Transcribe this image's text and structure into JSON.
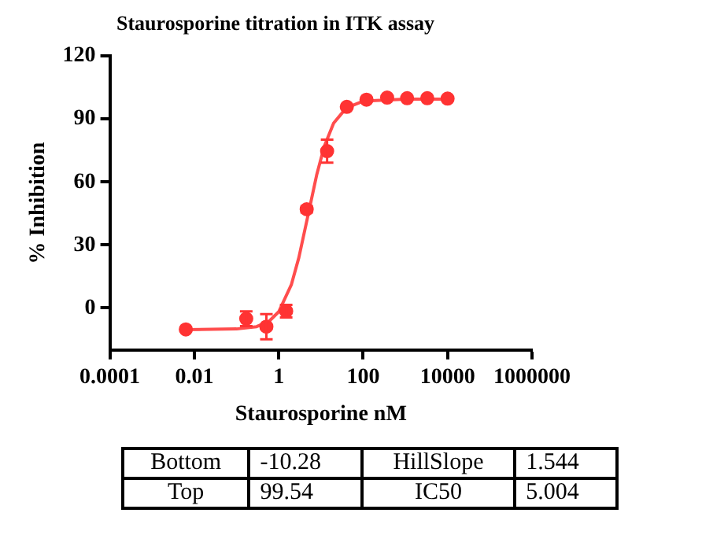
{
  "chart_data": {
    "type": "scatter",
    "title": "Staurosporine titration in ITK assay",
    "xlabel": "Staurosporine nM",
    "ylabel": "% Inhibition",
    "log": "x",
    "xlim": [
      0.0001,
      1000000
    ],
    "xticks": [
      0.0001,
      0.01,
      1,
      100,
      10000,
      1000000
    ],
    "ylim": [
      -20,
      120
    ],
    "yticks": [
      0,
      30,
      60,
      90,
      120
    ],
    "grid": false,
    "legend": false,
    "series": [
      {
        "color": "#ff3333",
        "marker": "circle",
        "x": [
          0.0063,
          0.17,
          0.51,
          1.5,
          4.6,
          14,
          41,
          120,
          370,
          1100,
          3300,
          10000
        ],
        "values": [
          -10.2,
          -5.1,
          -8.9,
          -1.5,
          47,
          74.7,
          95.8,
          99.2,
          100.2,
          99.9,
          99.9,
          99.7
        ],
        "errors": [
          null,
          3.5,
          6,
          3,
          1.5,
          5.5,
          null,
          null,
          null,
          null,
          null,
          null
        ]
      },
      {
        "type": "line",
        "color": "#ff4d4d",
        "marker": "none",
        "x": [
          0.0063,
          0.1,
          0.3,
          0.6,
          1,
          2,
          3,
          5,
          8,
          12,
          20,
          40,
          100,
          1000,
          10000
        ],
        "values": [
          -10.3,
          -10,
          -8.9,
          -6.2,
          -1.8,
          11.2,
          24,
          44.6,
          63.7,
          77,
          88,
          95.3,
          98.5,
          99.5,
          99.5
        ]
      }
    ],
    "annotations": [
      "Bottom",
      "-10.28",
      "HillSlope",
      "1.544",
      "Top",
      "99.54",
      "IC50",
      "5.004"
    ]
  }
}
